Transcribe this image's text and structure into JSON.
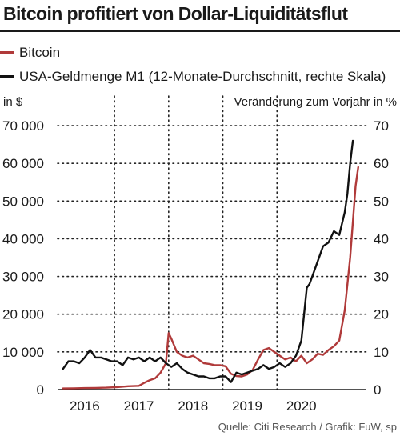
{
  "chart_data": {
    "type": "line",
    "title": "Bitcoin profitiert von Dollar-Liquiditätsflut",
    "y_left_label": "in $",
    "y_right_label": "Veränderung zum Vorjahr in %",
    "source": "Quelle: Citi Research / Grafik: FuW, sp",
    "x_range": [
      2015.5,
      2021.2
    ],
    "x_ticks": [
      {
        "value": 2016,
        "label": "2016"
      },
      {
        "value": 2017,
        "label": "2017"
      },
      {
        "value": 2018,
        "label": "2018"
      },
      {
        "value": 2019,
        "label": "2019"
      },
      {
        "value": 2020,
        "label": "2020"
      }
    ],
    "x_gridlines": [
      2016.55,
      2017.55,
      2018.55,
      2019.55
    ],
    "y_left_ticks": [
      {
        "value": 0,
        "label": "0"
      },
      {
        "value": 10000,
        "label": "10 000"
      },
      {
        "value": 20000,
        "label": "20 000"
      },
      {
        "value": 30000,
        "label": "30 000"
      },
      {
        "value": 40000,
        "label": "40 000"
      },
      {
        "value": 50000,
        "label": "50 000"
      },
      {
        "value": 60000,
        "label": "60 000"
      },
      {
        "value": 70000,
        "label": "70 000"
      }
    ],
    "y_left_range": [
      0,
      70000
    ],
    "y_right_ticks": [
      {
        "value": 0,
        "label": "0"
      },
      {
        "value": 10,
        "label": "10"
      },
      {
        "value": 20,
        "label": "20"
      },
      {
        "value": 30,
        "label": "30"
      },
      {
        "value": 40,
        "label": "40"
      },
      {
        "value": 50,
        "label": "50"
      },
      {
        "value": 60,
        "label": "60"
      },
      {
        "value": 70,
        "label": "70"
      }
    ],
    "y_right_range": [
      0,
      70
    ],
    "grid": "dotted",
    "series": [
      {
        "name": "Bitcoin",
        "axis": "left",
        "color": "#b03a3a",
        "x": [
          2015.6,
          2015.8,
          2016.0,
          2016.2,
          2016.4,
          2016.6,
          2016.8,
          2017.0,
          2017.1,
          2017.2,
          2017.3,
          2017.4,
          2017.5,
          2017.55,
          2017.6,
          2017.7,
          2017.8,
          2017.9,
          2018.0,
          2018.1,
          2018.2,
          2018.3,
          2018.4,
          2018.5,
          2018.6,
          2018.7,
          2018.8,
          2018.9,
          2019.0,
          2019.1,
          2019.2,
          2019.3,
          2019.4,
          2019.5,
          2019.6,
          2019.7,
          2019.8,
          2019.9,
          2020.0,
          2020.1,
          2020.2,
          2020.3,
          2020.4,
          2020.5,
          2020.6,
          2020.7,
          2020.8,
          2020.9,
          2021.0,
          2021.05
        ],
        "y": [
          300,
          350,
          400,
          450,
          500,
          650,
          900,
          1000,
          1800,
          2500,
          3000,
          4500,
          7000,
          15000,
          13500,
          10000,
          9000,
          8500,
          9000,
          8000,
          7000,
          6800,
          6500,
          6500,
          6200,
          4200,
          3600,
          3500,
          4000,
          5200,
          8000,
          10500,
          11000,
          10000,
          9000,
          8000,
          8500,
          7500,
          9000,
          7000,
          8000,
          9500,
          9200,
          10500,
          11500,
          13000,
          21000,
          35000,
          54000,
          59000
        ]
      },
      {
        "name": "USA-Geldmenge M1 (12-Monate-Durchschnitt, rechte Skala)",
        "axis": "right",
        "color": "#111111",
        "x": [
          2015.6,
          2015.7,
          2015.8,
          2015.9,
          2016.0,
          2016.1,
          2016.2,
          2016.3,
          2016.4,
          2016.5,
          2016.6,
          2016.7,
          2016.8,
          2016.9,
          2017.0,
          2017.1,
          2017.2,
          2017.3,
          2017.4,
          2017.5,
          2017.6,
          2017.7,
          2017.8,
          2017.9,
          2018.0,
          2018.1,
          2018.2,
          2018.3,
          2018.4,
          2018.5,
          2018.6,
          2018.7,
          2018.8,
          2018.9,
          2019.0,
          2019.1,
          2019.2,
          2019.3,
          2019.4,
          2019.5,
          2019.6,
          2019.7,
          2019.8,
          2019.9,
          2020.0,
          2020.1,
          2020.15,
          2020.2,
          2020.3,
          2020.4,
          2020.5,
          2020.6,
          2020.7,
          2020.8,
          2020.85,
          2020.9,
          2020.95
        ],
        "y": [
          5.5,
          7.5,
          7.5,
          7.0,
          8.5,
          10.5,
          8.5,
          8.5,
          8.0,
          7.5,
          7.5,
          6.5,
          8.5,
          8.0,
          8.5,
          7.5,
          8.5,
          7.5,
          8.5,
          7.0,
          6.0,
          7.0,
          5.5,
          4.5,
          4.0,
          3.5,
          3.5,
          3.0,
          3.0,
          3.5,
          3.5,
          2.0,
          4.5,
          4.0,
          4.5,
          5.0,
          5.5,
          6.5,
          5.5,
          6.0,
          7.0,
          6.0,
          7.0,
          9.0,
          13.0,
          27.0,
          28.0,
          30.0,
          34.0,
          38.0,
          39.0,
          42.0,
          41.0,
          47.0,
          52.0,
          60.0,
          66.0
        ]
      }
    ]
  }
}
